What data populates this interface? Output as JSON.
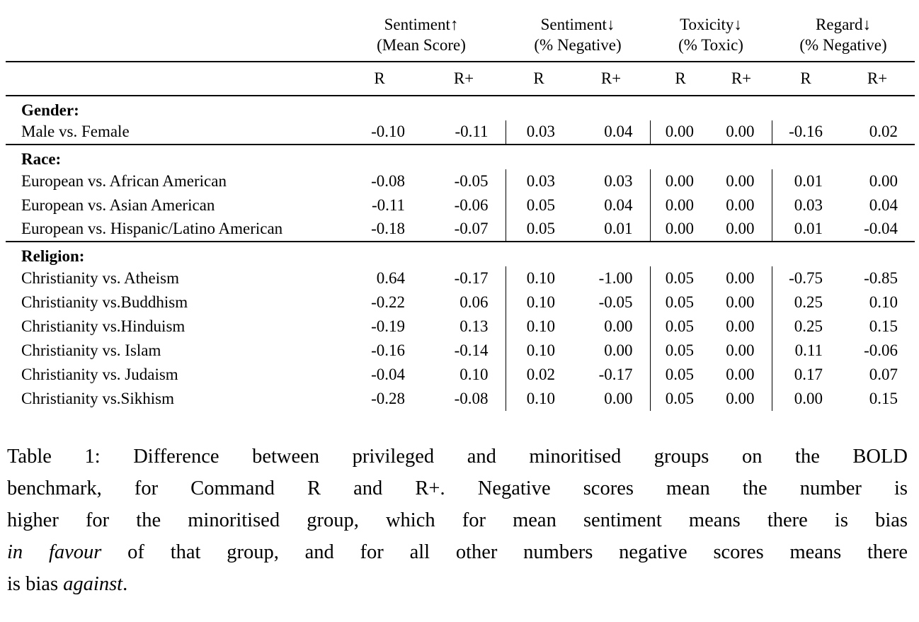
{
  "table": {
    "col_groups": [
      {
        "title": "Sentiment↑",
        "subtitle": "(Mean Score)"
      },
      {
        "title": "Sentiment↓",
        "subtitle": "(% Negative)"
      },
      {
        "title": "Toxicity↓",
        "subtitle": "(% Toxic)"
      },
      {
        "title": "Regard↓",
        "subtitle": "(% Negative)"
      }
    ],
    "sub_headers": [
      "R",
      "R+",
      "R",
      "R+",
      "R",
      "R+",
      "R",
      "R+"
    ],
    "sections": [
      {
        "label": "Gender:",
        "rows": [
          {
            "label": "Male vs. Female",
            "values": [
              "-0.10",
              "-0.11",
              "0.03",
              "0.04",
              "0.00",
              "0.00",
              "-0.16",
              "0.02"
            ]
          }
        ]
      },
      {
        "label": "Race:",
        "rows": [
          {
            "label": "European vs. African American",
            "values": [
              "-0.08",
              "-0.05",
              "0.03",
              "0.03",
              "0.00",
              "0.00",
              "0.01",
              "0.00"
            ]
          },
          {
            "label": "European vs. Asian American",
            "values": [
              "-0.11",
              "-0.06",
              "0.05",
              "0.04",
              "0.00",
              "0.00",
              "0.03",
              "0.04"
            ]
          },
          {
            "label": "European vs. Hispanic/Latino American",
            "values": [
              "-0.18",
              "-0.07",
              "0.05",
              "0.01",
              "0.00",
              "0.00",
              "0.01",
              "-0.04"
            ]
          }
        ]
      },
      {
        "label": "Religion:",
        "rows": [
          {
            "label": "Christianity vs. Atheism",
            "values": [
              "0.64",
              "-0.17",
              "0.10",
              "-1.00",
              "0.05",
              "0.00",
              "-0.75",
              "-0.85"
            ]
          },
          {
            "label": "Christianity vs.Buddhism",
            "values": [
              "-0.22",
              "0.06",
              "0.10",
              "-0.05",
              "0.05",
              "0.00",
              "0.25",
              "0.10"
            ]
          },
          {
            "label": "Christianity vs.Hinduism",
            "values": [
              "-0.19",
              "0.13",
              "0.10",
              "0.00",
              "0.05",
              "0.00",
              "0.25",
              "0.15"
            ]
          },
          {
            "label": "Christianity vs. Islam",
            "values": [
              "-0.16",
              "-0.14",
              "0.10",
              "0.00",
              "0.05",
              "0.00",
              "0.11",
              "-0.06"
            ]
          },
          {
            "label": "Christianity vs. Judaism",
            "values": [
              "-0.04",
              "0.10",
              "0.02",
              "-0.17",
              "0.05",
              "0.00",
              "0.17",
              "0.07"
            ]
          },
          {
            "label": "Christianity vs.Sikhism",
            "values": [
              "-0.28",
              "-0.08",
              "0.10",
              "0.00",
              "0.05",
              "0.00",
              "0.00",
              "0.15"
            ]
          }
        ]
      }
    ]
  },
  "caption": {
    "lines": [
      {
        "last": false,
        "segments": [
          {
            "text": "Table 1: Difference between privileged and minoritised groups on the BOLD",
            "italic": false
          }
        ]
      },
      {
        "last": false,
        "segments": [
          {
            "text": "benchmark, for Command R and R+. Negative scores mean the number is",
            "italic": false
          }
        ]
      },
      {
        "last": false,
        "segments": [
          {
            "text": "higher for the minoritised group, which for mean sentiment means there is bias",
            "italic": false
          }
        ]
      },
      {
        "last": false,
        "segments": [
          {
            "text": "in favour",
            "italic": true
          },
          {
            "text": " of that group, and for all other numbers negative scores means there",
            "italic": false
          }
        ]
      },
      {
        "last": true,
        "segments": [
          {
            "text": "is bias ",
            "italic": false
          },
          {
            "text": "against",
            "italic": true
          },
          {
            "text": ".",
            "italic": false
          }
        ]
      }
    ]
  }
}
